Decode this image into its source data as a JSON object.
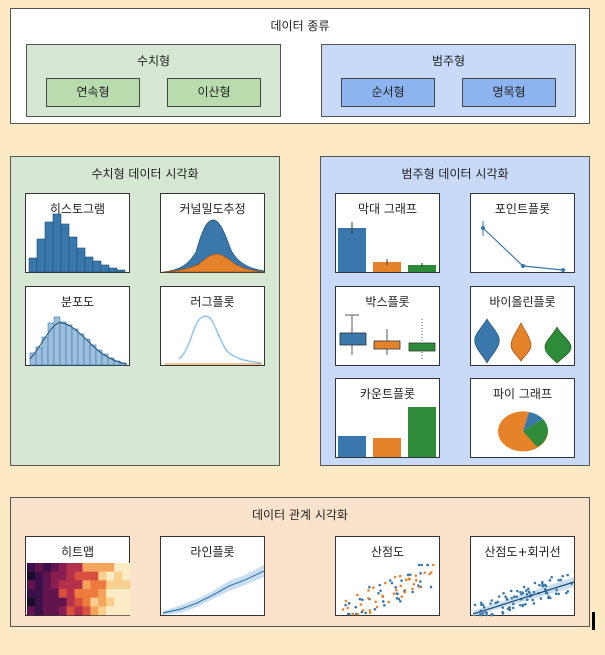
{
  "types": {
    "title": "데이터 종류",
    "numeric": {
      "title": "수치형",
      "items": [
        "연속형",
        "이산형"
      ]
    },
    "categorical": {
      "title": "범주형",
      "items": [
        "순서형",
        "명목형"
      ]
    }
  },
  "numeric_viz": {
    "title": "수치형 데이터 시각화",
    "cards": [
      "히스토그램",
      "커널밀도추정",
      "분포도",
      "러그플롯"
    ]
  },
  "categorical_viz": {
    "title": "범주형 데이터 시각화",
    "cards": [
      "막대 그래프",
      "포인트플롯",
      "박스플롯",
      "바이올린플롯",
      "카운트플롯",
      "파이 그래프"
    ]
  },
  "relation_viz": {
    "title": "데이터 관계 시각화",
    "cards": [
      "히트맵",
      "라인플롯",
      "산점도",
      "산점도+회귀선"
    ]
  },
  "colors": {
    "page": "#fde9c4",
    "green_panel": "#d6e8d3",
    "green_btn": "#b9dcae",
    "blue_panel": "#c8daf7",
    "blue_btn": "#8db4ef",
    "relation_panel": "#fbe3cb",
    "plot_blue": "#3a78ab",
    "plot_orange": "#e6832a",
    "plot_green": "#2e8b3a"
  }
}
